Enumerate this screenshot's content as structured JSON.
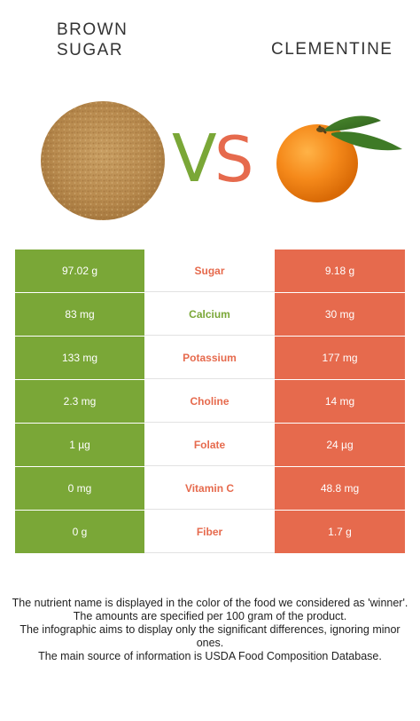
{
  "foods": {
    "left": {
      "name": "BROWN\nSUGAR",
      "color": "#7aa737"
    },
    "right": {
      "name": "CLEMENTINE",
      "color": "#e66a4d"
    }
  },
  "vs": {
    "v": "V",
    "s": "S",
    "v_color": "#7aa737",
    "s_color": "#e66a4d"
  },
  "rows": [
    {
      "nutrient": "Sugar",
      "left": "97.02 g",
      "right": "9.18 g",
      "winner_color": "#e66a4d"
    },
    {
      "nutrient": "Calcium",
      "left": "83 mg",
      "right": "30 mg",
      "winner_color": "#7aa737"
    },
    {
      "nutrient": "Potassium",
      "left": "133 mg",
      "right": "177 mg",
      "winner_color": "#e66a4d"
    },
    {
      "nutrient": "Choline",
      "left": "2.3 mg",
      "right": "14 mg",
      "winner_color": "#e66a4d"
    },
    {
      "nutrient": "Folate",
      "left": "1 µg",
      "right": "24 µg",
      "winner_color": "#e66a4d"
    },
    {
      "nutrient": "Vitamin C",
      "left": "0 mg",
      "right": "48.8 mg",
      "winner_color": "#e66a4d"
    },
    {
      "nutrient": "Fiber",
      "left": "0 g",
      "right": "1.7 g",
      "winner_color": "#e66a4d"
    }
  ],
  "footnote": [
    "The nutrient name is displayed in the color of the food we considered as 'winner'.",
    "The amounts are specified per 100 gram of the product.",
    "The infographic aims to display only the significant differences, ignoring minor ones.",
    "The main source of information is USDA Food Composition Database."
  ]
}
